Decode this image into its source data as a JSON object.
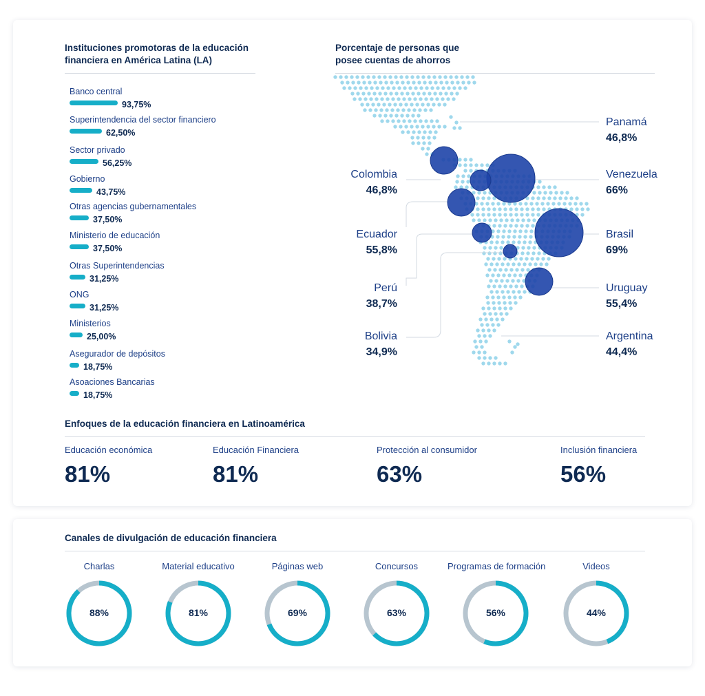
{
  "colors": {
    "accent": "#16aec8",
    "bubble": "#1e44a8",
    "dots": "#9fd8ec",
    "ring_track": "#b7c5cf",
    "text_dark": "#0f2a52",
    "text_blue": "#1d3f87"
  },
  "chart_data": [
    {
      "type": "bar",
      "title": "Instituciones promotoras de la educación financiera en América Latina (LA)",
      "categories": [
        "Banco central",
        "Superintendencia del sector financiero",
        "Sector privado",
        "Gobierno",
        "Otras agencias gubernamentales",
        "Ministerio de educación",
        "Otras Superintendencias",
        "ONG",
        "Ministerios",
        "Asegurador de depósitos",
        "Asoaciones Bancarias"
      ],
      "values": [
        93.75,
        62.5,
        56.25,
        43.75,
        37.5,
        37.5,
        31.25,
        31.25,
        25.0,
        18.75,
        18.75
      ],
      "value_labels": [
        "93,75%",
        "62,50%",
        "56,25%",
        "43,75%",
        "37,50%",
        "37,50%",
        "31,25%",
        "31,25%",
        "25,00%",
        "18,75%",
        "18,75%"
      ]
    },
    {
      "type": "scatter",
      "title": "Porcentaje de personas que posee cuentas de ahorros",
      "countries": [
        {
          "name": "Panamá",
          "value": 46.8,
          "label": "46,8%"
        },
        {
          "name": "Colombia",
          "value": 46.8,
          "label": "46,8%"
        },
        {
          "name": "Venezuela",
          "value": 66,
          "label": "66%"
        },
        {
          "name": "Ecuador",
          "value": 55.8,
          "label": "55,8%"
        },
        {
          "name": "Brasil",
          "value": 69,
          "label": "69%"
        },
        {
          "name": "Perú",
          "value": 38.7,
          "label": "38,7%"
        },
        {
          "name": "Uruguay",
          "value": 55.4,
          "label": "55,4%"
        },
        {
          "name": "Bolivia",
          "value": 34.9,
          "label": "34,9%"
        },
        {
          "name": "Argentina",
          "value": 44.4,
          "label": "44,4%"
        }
      ]
    },
    {
      "type": "table",
      "title": "Enfoques de la educación financiera en Latinoamérica",
      "categories": [
        "Educación económica",
        "Educación Financiera",
        "Protección al consumidor",
        "Inclusión financiera"
      ],
      "values": [
        81,
        81,
        63,
        56
      ],
      "value_labels": [
        "81%",
        "81%",
        "63%",
        "56%"
      ]
    },
    {
      "type": "pie",
      "title": "Canales de divulgación de educación financiera",
      "categories": [
        "Charlas",
        "Material educativo",
        "Páginas web",
        "Concursos",
        "Programas de formación",
        "Videos"
      ],
      "values": [
        88,
        81,
        69,
        63,
        56,
        44
      ],
      "value_labels": [
        "88%",
        "81%",
        "69%",
        "63%",
        "56%",
        "44%"
      ]
    }
  ]
}
